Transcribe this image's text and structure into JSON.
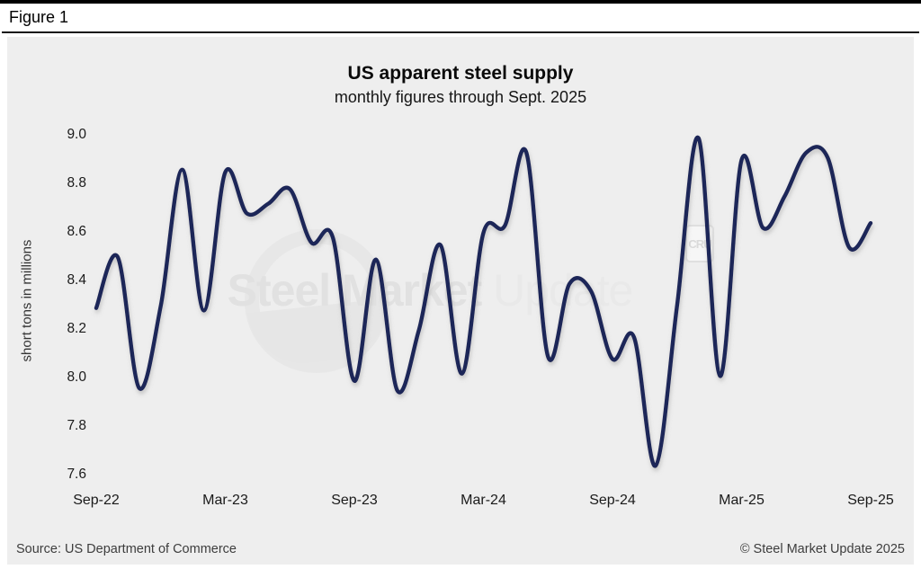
{
  "figure": {
    "label": "Figure 1"
  },
  "chart": {
    "title": "US apparent steel supply",
    "subtitle": "monthly figures through Sept. 2025"
  },
  "watermark": {
    "text_strong": "Steel Market",
    "text_light": " Update",
    "cru_label": "CRU"
  },
  "footer": {
    "source": "Source: US Department of Commerce",
    "copyright": "© Steel Market Update 2025"
  },
  "chart_data": {
    "type": "line",
    "title": "US apparent steel supply",
    "subtitle": "monthly figures through Sept. 2025",
    "xlabel": "",
    "ylabel": "short tons in millions",
    "ylim": [
      7.6,
      9.0
    ],
    "yticks": [
      9.0,
      8.8,
      8.6,
      8.4,
      8.2,
      8.0,
      7.8,
      7.6
    ],
    "xtick_labels_shown": [
      "Sep-22",
      "Mar-23",
      "Sep-23",
      "Mar-24",
      "Sep-24",
      "Mar-25",
      "Sep-25"
    ],
    "xtick_every": 6,
    "grid": false,
    "legend": "none",
    "line_color": "#1f2659",
    "x": [
      "Sep-22",
      "Oct-22",
      "Nov-22",
      "Dec-22",
      "Jan-23",
      "Feb-23",
      "Mar-23",
      "Apr-23",
      "May-23",
      "Jun-23",
      "Jul-23",
      "Aug-23",
      "Sep-23",
      "Oct-23",
      "Nov-23",
      "Dec-23",
      "Jan-24",
      "Feb-24",
      "Mar-24",
      "Apr-24",
      "May-24",
      "Jun-24",
      "Jul-24",
      "Aug-24",
      "Sep-24",
      "Oct-24",
      "Nov-24",
      "Dec-24",
      "Jan-25",
      "Feb-25",
      "Mar-25",
      "Apr-25",
      "May-25",
      "Jun-25",
      "Jul-25",
      "Aug-25",
      "Sep-25"
    ],
    "values": [
      8.29,
      8.5,
      7.96,
      8.3,
      8.86,
      8.28,
      8.85,
      8.68,
      8.72,
      8.78,
      8.56,
      8.58,
      7.99,
      8.49,
      7.95,
      8.2,
      8.55,
      8.02,
      8.6,
      8.63,
      8.93,
      8.09,
      8.39,
      8.36,
      8.08,
      8.17,
      7.64,
      8.3,
      8.99,
      8.01,
      8.9,
      8.62,
      8.75,
      8.93,
      8.91,
      8.54,
      8.64
    ]
  }
}
